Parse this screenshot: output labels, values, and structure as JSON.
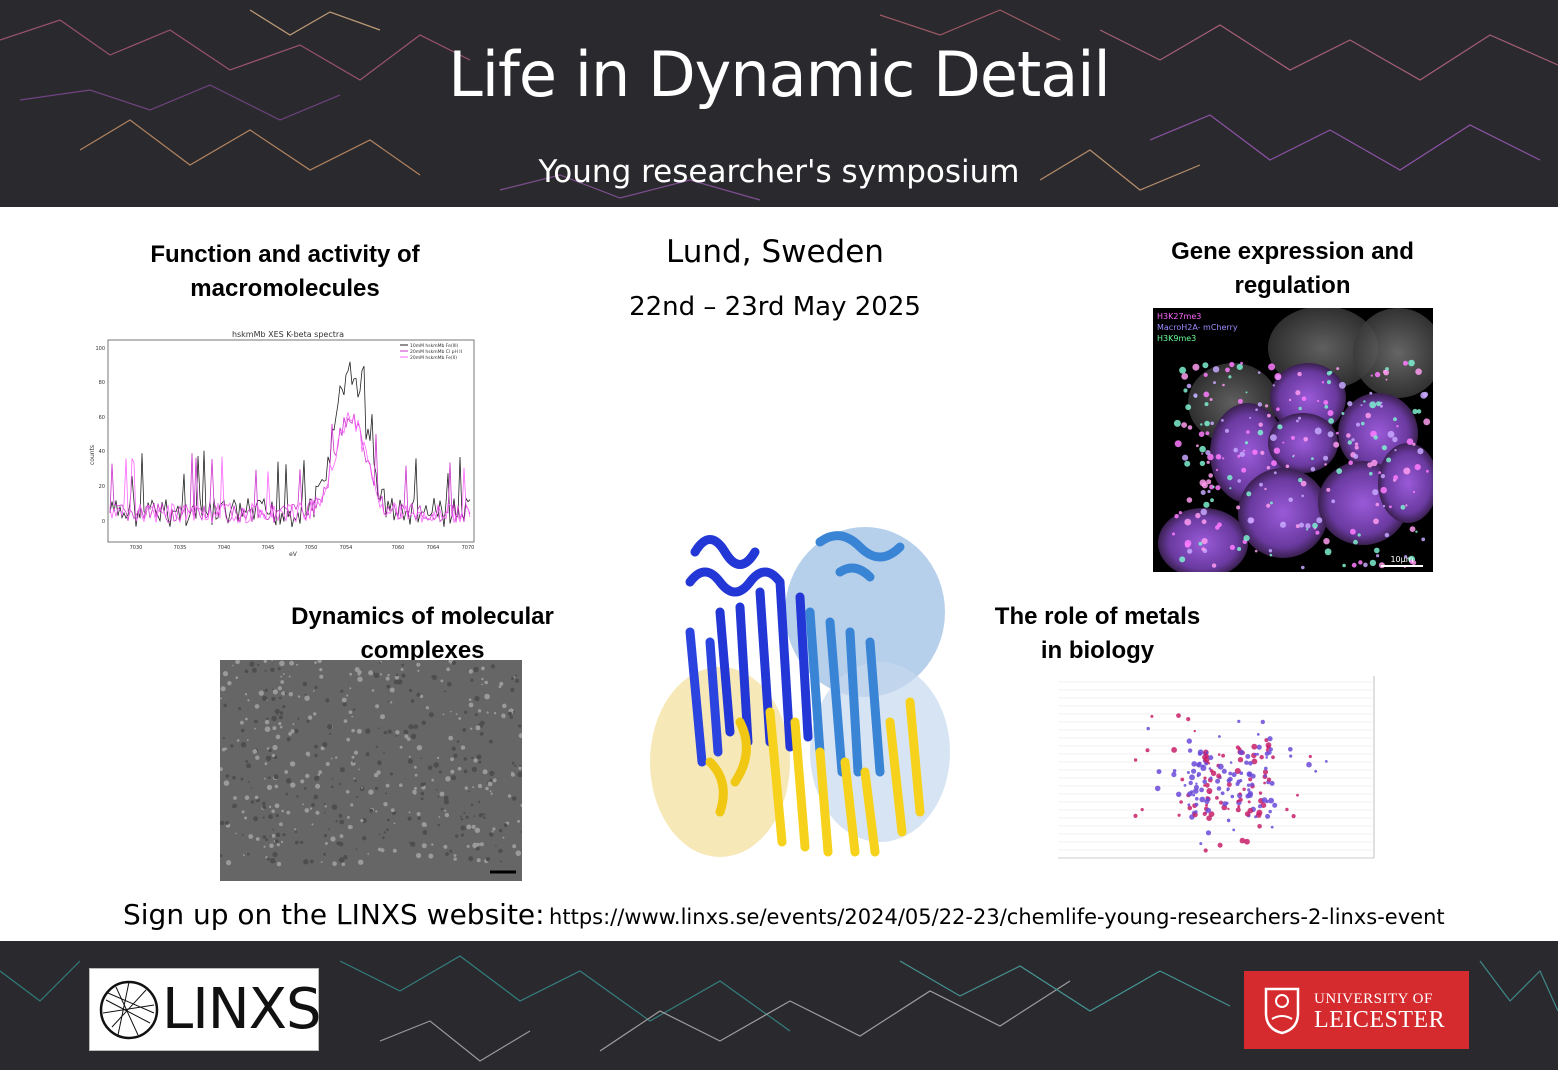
{
  "header": {
    "title": "Life in Dynamic Detail",
    "subtitle": "Young researcher's symposium"
  },
  "event": {
    "location": "Lund, Sweden",
    "dates": "22nd – 23rd May 2025"
  },
  "topics": {
    "macromolecules": {
      "line1": "Function and activity of",
      "line2": "macromolecules"
    },
    "gene_expression": {
      "line1": "Gene expression and",
      "line2": "regulation"
    },
    "molecular_complexes": {
      "line1": "Dynamics of molecular",
      "line2": "complexes"
    },
    "metals": {
      "line1": "The role of metals",
      "line2": "in biology"
    }
  },
  "spectrum_panel": {
    "title": "hskmMb XES K-beta spectra",
    "xlabel": "eV",
    "ylabel": "counts",
    "legend": [
      "10mM hskmMb Fe(III)",
      "20mM hskmMb Cl pH II",
      "20mM hskmMb Fe(II)"
    ],
    "yticks": [
      "100",
      "80",
      "60",
      "40",
      "20",
      "0"
    ],
    "xticks": [
      "7030",
      "7035",
      "7040",
      "7045",
      "7050",
      "7054",
      "7060",
      "7064",
      "7070"
    ],
    "colors": [
      "#222222",
      "#cc33cc",
      "#ff66ff"
    ]
  },
  "microscopy_panel": {
    "labels": [
      "H3K27me3",
      "MacroH2A- mCherry",
      "H3K9me3"
    ],
    "label_colors": [
      "#ff66ff",
      "#9a8cff",
      "#66ff99"
    ],
    "scale_bar": "10µm"
  },
  "signup": {
    "label": "Sign up on the LINXS website:",
    "url": "https://www.linxs.se/events/2024/05/22-23/chemlife-young-researchers-2-linxs-event"
  },
  "logos": {
    "linxs": "LINXS",
    "leicester_line1": "UNIVERSITY OF",
    "leicester_line2": "LEICESTER"
  },
  "colors": {
    "band": "#2a2a2e",
    "leicester_red": "#d52a2e",
    "protein_blue": "#2336d6",
    "protein_yellow": "#f6d21c"
  }
}
